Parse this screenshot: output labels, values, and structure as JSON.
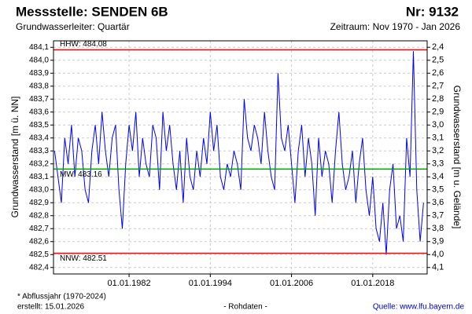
{
  "chart_data": {
    "type": "line",
    "title": "Messstelle: SENDEN 6B",
    "number": "Nr: 9132",
    "subtitle": "Grundwasserleiter: Quartär",
    "period": "Zeitraum: Nov 1970 - Jan 2026",
    "ylabel": "Grundwasserstand [m ü. NN]",
    "y2label": "Grundwasserstand [m u. Gelände]",
    "footnote": "* Abflussjahr (1970-2024)",
    "created": "erstellt:  15.01.2026",
    "note": "- Rohdaten -",
    "source": "Quelle: www.lfu.bayern.de",
    "color": "#0000ff",
    "grid": true,
    "x": [
      "1971-01-01",
      "1971-07-01",
      "1972-01-01",
      "1972-07-01",
      "1973-01-01",
      "1973-07-01",
      "1974-01-01",
      "1974-07-01",
      "1975-01-01",
      "1975-07-01",
      "1976-01-01",
      "1976-07-01",
      "1977-01-01",
      "1977-07-01",
      "1978-01-01",
      "1978-07-01",
      "1979-01-01",
      "1979-07-01",
      "1980-01-01",
      "1980-07-01",
      "1981-01-01",
      "1981-07-01",
      "1982-01-01",
      "1982-07-01",
      "1983-01-01",
      "1983-07-01",
      "1984-01-01",
      "1984-07-01",
      "1985-01-01",
      "1985-07-01",
      "1986-01-01",
      "1986-07-01",
      "1987-01-01",
      "1987-07-01",
      "1988-01-01",
      "1988-07-01",
      "1989-01-01",
      "1989-07-01",
      "1990-01-01",
      "1990-07-01",
      "1991-01-01",
      "1991-07-01",
      "1992-01-01",
      "1992-07-01",
      "1993-01-01",
      "1993-07-01",
      "1994-01-01",
      "1994-07-01",
      "1995-01-01",
      "1995-07-01",
      "1996-01-01",
      "1996-07-01",
      "1997-01-01",
      "1997-07-01",
      "1998-01-01",
      "1998-07-01",
      "1999-01-01",
      "1999-07-01",
      "2000-01-01",
      "2000-07-01",
      "2001-01-01",
      "2001-07-01",
      "2002-01-01",
      "2002-07-01",
      "2003-01-01",
      "2003-07-01",
      "2004-01-01",
      "2004-07-01",
      "2005-01-01",
      "2005-07-01",
      "2006-01-01",
      "2006-07-01",
      "2007-01-01",
      "2007-07-01",
      "2008-01-01",
      "2008-07-01",
      "2009-01-01",
      "2009-07-01",
      "2010-01-01",
      "2010-07-01",
      "2011-01-01",
      "2011-07-01",
      "2012-01-01",
      "2012-07-01",
      "2013-01-01",
      "2013-07-01",
      "2014-01-01",
      "2014-07-01",
      "2015-01-01",
      "2015-07-01",
      "2016-01-01",
      "2016-07-01",
      "2017-01-01",
      "2017-07-01",
      "2018-01-01",
      "2018-07-01",
      "2019-01-01",
      "2019-07-01",
      "2020-01-01",
      "2020-07-01",
      "2021-01-01",
      "2021-07-01",
      "2022-01-01",
      "2022-07-01",
      "2023-01-01",
      "2023-07-01",
      "2024-01-01",
      "2024-07-01",
      "2025-01-01",
      "2025-07-01"
    ],
    "values": [
      483.3,
      483.1,
      482.9,
      483.4,
      483.2,
      483.5,
      483.1,
      483.4,
      483.3,
      483.0,
      482.9,
      483.3,
      483.5,
      483.2,
      483.6,
      483.3,
      483.1,
      483.4,
      483.5,
      483.0,
      482.7,
      483.2,
      483.5,
      483.3,
      483.6,
      483.1,
      483.4,
      483.2,
      483.1,
      483.5,
      483.4,
      483.0,
      483.6,
      483.3,
      483.5,
      483.2,
      483.0,
      483.3,
      482.9,
      483.4,
      483.1,
      483.0,
      483.3,
      483.1,
      483.4,
      483.2,
      483.6,
      483.3,
      483.5,
      483.1,
      483.0,
      483.2,
      483.1,
      483.3,
      483.2,
      483.0,
      483.7,
      483.4,
      483.3,
      483.5,
      483.4,
      483.2,
      483.6,
      483.3,
      483.1,
      483.0,
      483.9,
      483.4,
      483.3,
      483.5,
      483.2,
      482.9,
      483.3,
      483.5,
      483.1,
      483.4,
      483.2,
      482.8,
      483.4,
      483.1,
      483.3,
      483.2,
      482.9,
      483.3,
      483.6,
      483.2,
      483.0,
      483.1,
      483.3,
      482.9,
      483.2,
      483.4,
      483.0,
      482.8,
      483.1,
      482.7,
      482.6,
      482.9,
      482.5,
      483.0,
      483.2,
      482.7,
      482.8,
      482.6,
      483.4,
      483.1,
      484.07,
      483.0,
      482.6,
      482.9
    ],
    "xlim": [
      "1970-11-01",
      "2026-01-15"
    ],
    "xticks": [
      {
        "value": "1982-01-01",
        "label": "01.01.1982"
      },
      {
        "value": "1994-01-01",
        "label": "01.01.1994"
      },
      {
        "value": "2006-01-01",
        "label": "01.01.2006"
      },
      {
        "value": "2018-01-01",
        "label": "01.01.2018"
      }
    ],
    "ylim": [
      482.35,
      484.15
    ],
    "yticks": [
      {
        "value": 482.4,
        "label": "482,4"
      },
      {
        "value": 482.5,
        "label": "482,5"
      },
      {
        "value": 482.6,
        "label": "482,6"
      },
      {
        "value": 482.7,
        "label": "482,7"
      },
      {
        "value": 482.8,
        "label": "482,8"
      },
      {
        "value": 482.9,
        "label": "482,9"
      },
      {
        "value": 483.0,
        "label": "483,0"
      },
      {
        "value": 483.1,
        "label": "483,1"
      },
      {
        "value": 483.2,
        "label": "483,2"
      },
      {
        "value": 483.3,
        "label": "483,3"
      },
      {
        "value": 483.4,
        "label": "483,4"
      },
      {
        "value": 483.5,
        "label": "483,5"
      },
      {
        "value": 483.6,
        "label": "483,6"
      },
      {
        "value": 483.7,
        "label": "483,7"
      },
      {
        "value": 483.8,
        "label": "483,8"
      },
      {
        "value": 483.9,
        "label": "483,9"
      },
      {
        "value": 484.0,
        "label": "484,0"
      },
      {
        "value": 484.1,
        "label": "484,1"
      }
    ],
    "y2lim": [
      4.15,
      2.35
    ],
    "y2ticks": [
      {
        "value": 2.4,
        "label": "2,4"
      },
      {
        "value": 2.5,
        "label": "2,5"
      },
      {
        "value": 2.6,
        "label": "2,6"
      },
      {
        "value": 2.7,
        "label": "2,7"
      },
      {
        "value": 2.8,
        "label": "2,8"
      },
      {
        "value": 2.9,
        "label": "2,9"
      },
      {
        "value": 3.0,
        "label": "3,0"
      },
      {
        "value": 3.1,
        "label": "3,1"
      },
      {
        "value": 3.2,
        "label": "3,2"
      },
      {
        "value": 3.3,
        "label": "3,3"
      },
      {
        "value": 3.4,
        "label": "3,4"
      },
      {
        "value": 3.5,
        "label": "3,5"
      },
      {
        "value": 3.6,
        "label": "3,6"
      },
      {
        "value": 3.7,
        "label": "3,7"
      },
      {
        "value": 3.8,
        "label": "3,8"
      },
      {
        "value": 3.9,
        "label": "3,9"
      },
      {
        "value": 4.0,
        "label": "4,0"
      },
      {
        "value": 4.1,
        "label": "4,1"
      }
    ],
    "reference_lines": [
      {
        "label": "HHW: 484.08",
        "value": 484.08,
        "color": "#ff0000"
      },
      {
        "label": "MW: 483.16",
        "value": 483.16,
        "color": "#00a000"
      },
      {
        "label": "NNW: 482.51",
        "value": 482.51,
        "color": "#ff0000"
      }
    ]
  }
}
